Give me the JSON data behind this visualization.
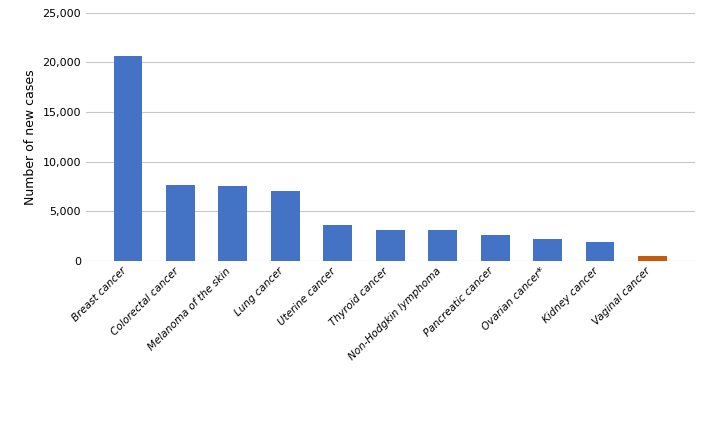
{
  "categories": [
    "Breast cancer",
    "Colorectal cancer",
    "Melanoma of the skin",
    "Lung cancer",
    "Uterine cancer",
    "Thyroid cancer",
    "Non-Hodgkin lymphoma",
    "Pancreatic cancer",
    "Ovarian cancer*",
    "Kidney cancer",
    "Vaginal cancer"
  ],
  "values": [
    20640,
    7700,
    7600,
    7000,
    3600,
    3150,
    3150,
    2650,
    2200,
    1900,
    500
  ],
  "bar_colors": [
    "#4472C4",
    "#4472C4",
    "#4472C4",
    "#4472C4",
    "#4472C4",
    "#4472C4",
    "#4472C4",
    "#4472C4",
    "#4472C4",
    "#4472C4",
    "#C55A11"
  ],
  "ylabel": "Number of new cases",
  "ylim": [
    0,
    25000
  ],
  "yticks": [
    0,
    5000,
    10000,
    15000,
    20000,
    25000
  ],
  "background_color": "#ffffff",
  "grid_color": "#c8c8c8",
  "bar_width": 0.55,
  "ylabel_fontsize": 9,
  "tick_fontsize": 8,
  "xtick_fontsize": 7.5
}
